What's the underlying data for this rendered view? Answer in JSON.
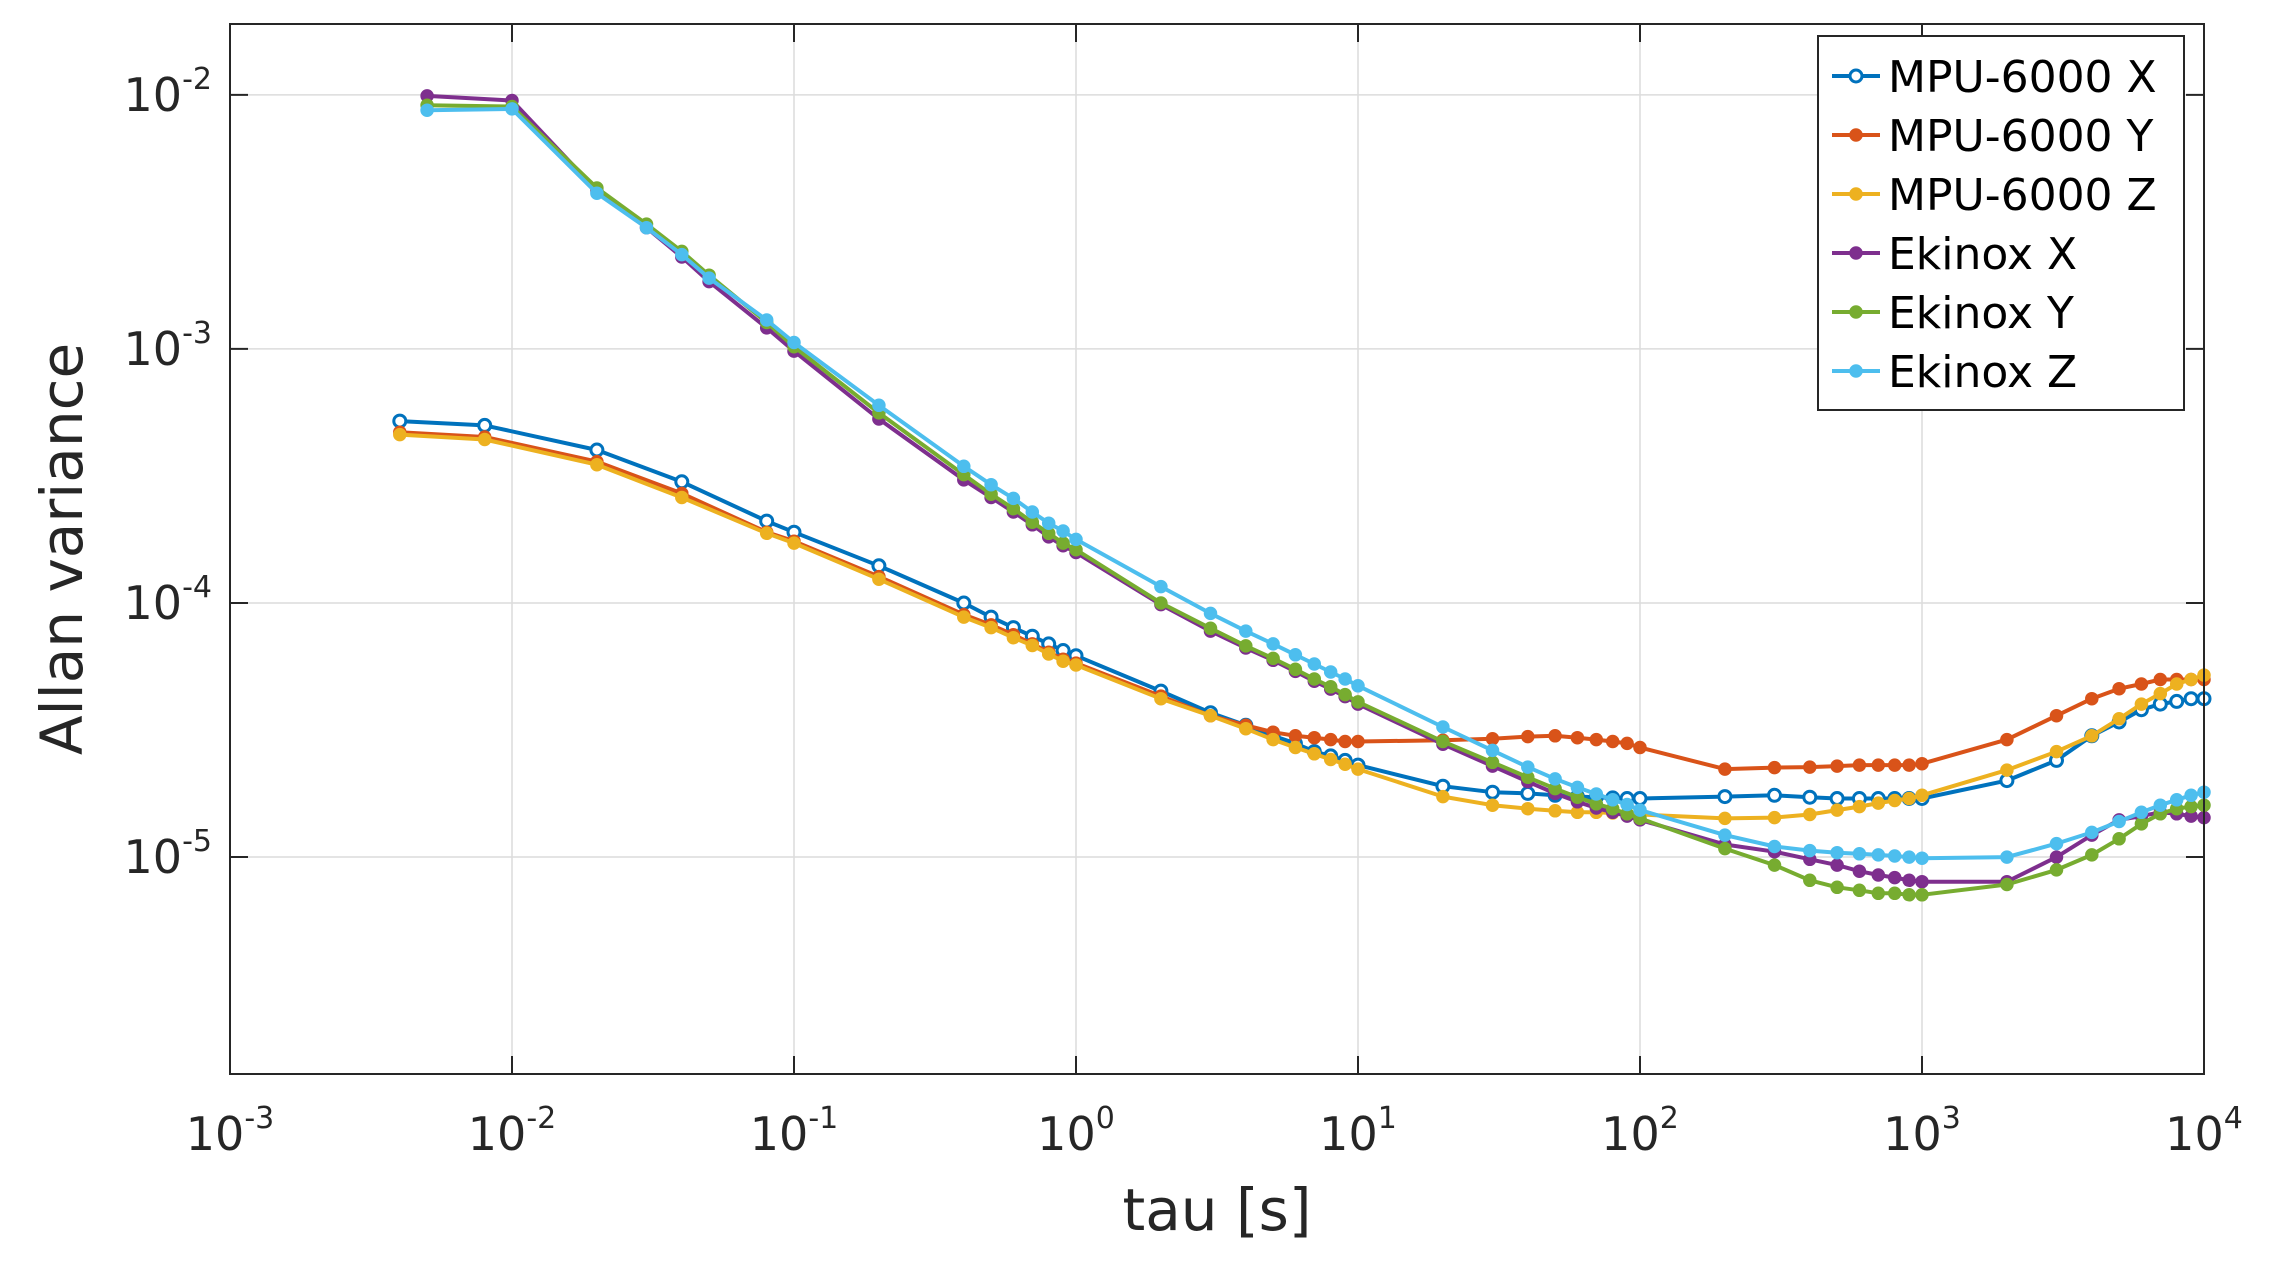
{
  "chart_data": {
    "type": "line",
    "title": "",
    "xlabel": "tau [s]",
    "ylabel": "Allan variance",
    "xscale": "log",
    "yscale": "log",
    "xlim": [
      0.001,
      10000
    ],
    "ylim": [
      1.4e-06,
      0.019
    ],
    "grid": true,
    "legend_position": "top-right",
    "x_ticks": [
      {
        "base": "10",
        "exp": "-3",
        "value": 0.001
      },
      {
        "base": "10",
        "exp": "-2",
        "value": 0.01
      },
      {
        "base": "10",
        "exp": "-1",
        "value": 0.1
      },
      {
        "base": "10",
        "exp": "0",
        "value": 1
      },
      {
        "base": "10",
        "exp": "1",
        "value": 10
      },
      {
        "base": "10",
        "exp": "2",
        "value": 100
      },
      {
        "base": "10",
        "exp": "3",
        "value": 1000
      },
      {
        "base": "10",
        "exp": "4",
        "value": 10000
      }
    ],
    "y_ticks": [
      {
        "base": "10",
        "exp": "-5",
        "value": 1e-05
      },
      {
        "base": "10",
        "exp": "-4",
        "value": 0.0001
      },
      {
        "base": "10",
        "exp": "-3",
        "value": 0.001
      },
      {
        "base": "10",
        "exp": "-2",
        "value": 0.01
      }
    ],
    "series": [
      {
        "name": "MPU-6000 X",
        "color": "#0072BD",
        "marker": "open-circle",
        "x": [
          0.004,
          0.008,
          0.02,
          0.04,
          0.08,
          0.1,
          0.2,
          0.4,
          0.5,
          0.6,
          0.7,
          0.8,
          0.9,
          1,
          2,
          3,
          4,
          5,
          6,
          7,
          8,
          9,
          10,
          20,
          30,
          40,
          50,
          60,
          70,
          80,
          90,
          100,
          200,
          300,
          400,
          500,
          600,
          700,
          800,
          900,
          1000,
          2000,
          3000,
          4000,
          5000,
          6000,
          7000,
          8000,
          9000,
          10000
        ],
        "values": [
          0.00052,
          0.0005,
          0.0004,
          0.0003,
          0.00021,
          0.00019,
          0.00014,
          0.0001,
          8.8e-05,
          8e-05,
          7.4e-05,
          6.9e-05,
          6.5e-05,
          6.2e-05,
          4.5e-05,
          3.7e-05,
          3.3e-05,
          3e-05,
          2.8e-05,
          2.6e-05,
          2.5e-05,
          2.4e-05,
          2.3e-05,
          1.9e-05,
          1.8e-05,
          1.78e-05,
          1.75e-05,
          1.73e-05,
          1.72e-05,
          1.71e-05,
          1.7e-05,
          1.7e-05,
          1.73e-05,
          1.75e-05,
          1.72e-05,
          1.7e-05,
          1.7e-05,
          1.7e-05,
          1.7e-05,
          1.7e-05,
          1.7e-05,
          2e-05,
          2.4e-05,
          3e-05,
          3.4e-05,
          3.8e-05,
          4e-05,
          4.1e-05,
          4.2e-05,
          4.2e-05
        ]
      },
      {
        "name": "MPU-6000 Y",
        "color": "#D95319",
        "marker": "filled-circle",
        "x": [
          0.004,
          0.008,
          0.02,
          0.04,
          0.08,
          0.1,
          0.2,
          0.4,
          0.5,
          0.6,
          0.7,
          0.8,
          0.9,
          1,
          2,
          3,
          4,
          5,
          6,
          7,
          8,
          9,
          10,
          20,
          30,
          40,
          50,
          60,
          70,
          80,
          90,
          100,
          200,
          300,
          400,
          500,
          600,
          700,
          800,
          900,
          1000,
          2000,
          3000,
          4000,
          5000,
          6000,
          7000,
          8000,
          9000,
          10000
        ],
        "values": [
          0.00047,
          0.00045,
          0.00036,
          0.00027,
          0.00019,
          0.000175,
          0.000127,
          9e-05,
          8.2e-05,
          7.5e-05,
          6.9e-05,
          6.4e-05,
          6e-05,
          5.8e-05,
          4.3e-05,
          3.6e-05,
          3.3e-05,
          3.1e-05,
          3e-05,
          2.95e-05,
          2.9e-05,
          2.85e-05,
          2.85e-05,
          2.88e-05,
          2.92e-05,
          2.98e-05,
          3e-05,
          2.95e-05,
          2.9e-05,
          2.85e-05,
          2.8e-05,
          2.7e-05,
          2.22e-05,
          2.25e-05,
          2.26e-05,
          2.28e-05,
          2.3e-05,
          2.3e-05,
          2.3e-05,
          2.3e-05,
          2.33e-05,
          2.9e-05,
          3.6e-05,
          4.2e-05,
          4.6e-05,
          4.8e-05,
          5e-05,
          5e-05,
          5e-05,
          5e-05
        ]
      },
      {
        "name": "MPU-6000 Z",
        "color": "#EDB120",
        "marker": "filled-circle",
        "x": [
          0.004,
          0.008,
          0.02,
          0.04,
          0.08,
          0.1,
          0.2,
          0.4,
          0.5,
          0.6,
          0.7,
          0.8,
          0.9,
          1,
          2,
          3,
          4,
          5,
          6,
          7,
          8,
          9,
          10,
          20,
          30,
          40,
          50,
          60,
          70,
          80,
          90,
          100,
          200,
          300,
          400,
          500,
          600,
          700,
          800,
          900,
          1000,
          2000,
          3000,
          4000,
          5000,
          6000,
          7000,
          8000,
          9000,
          10000
        ],
        "values": [
          0.00046,
          0.00044,
          0.00035,
          0.00026,
          0.000188,
          0.000172,
          0.000124,
          8.8e-05,
          8e-05,
          7.3e-05,
          6.8e-05,
          6.3e-05,
          5.9e-05,
          5.7e-05,
          4.2e-05,
          3.6e-05,
          3.2e-05,
          2.9e-05,
          2.7e-05,
          2.55e-05,
          2.42e-05,
          2.32e-05,
          2.22e-05,
          1.73e-05,
          1.6e-05,
          1.55e-05,
          1.52e-05,
          1.5e-05,
          1.5e-05,
          1.49e-05,
          1.48e-05,
          1.47e-05,
          1.42e-05,
          1.43e-05,
          1.47e-05,
          1.53e-05,
          1.58e-05,
          1.63e-05,
          1.67e-05,
          1.7e-05,
          1.75e-05,
          2.2e-05,
          2.6e-05,
          3e-05,
          3.5e-05,
          4e-05,
          4.4e-05,
          4.8e-05,
          5e-05,
          5.2e-05
        ]
      },
      {
        "name": "Ekinox X",
        "color": "#7E2F8E",
        "marker": "filled-circle",
        "x": [
          0.005,
          0.01,
          0.02,
          0.03,
          0.04,
          0.05,
          0.08,
          0.1,
          0.2,
          0.4,
          0.5,
          0.6,
          0.7,
          0.8,
          0.9,
          1,
          2,
          3,
          4,
          5,
          6,
          7,
          8,
          9,
          10,
          20,
          30,
          40,
          50,
          60,
          70,
          80,
          90,
          100,
          200,
          300,
          400,
          500,
          600,
          700,
          800,
          900,
          1000,
          2000,
          3000,
          4000,
          5000,
          6000,
          7000,
          8000,
          9000,
          10000
        ],
        "values": [
          0.0099,
          0.0095,
          0.0042,
          0.003,
          0.0023,
          0.00184,
          0.00121,
          0.00098,
          0.00053,
          0.000305,
          0.00026,
          0.000228,
          0.000203,
          0.000182,
          0.000168,
          0.000158,
          9.85e-05,
          7.75e-05,
          6.65e-05,
          5.95e-05,
          5.38e-05,
          4.92e-05,
          4.58e-05,
          4.28e-05,
          4e-05,
          2.78e-05,
          2.28e-05,
          1.98e-05,
          1.78e-05,
          1.65e-05,
          1.56e-05,
          1.5e-05,
          1.45e-05,
          1.4e-05,
          1.12e-05,
          1.05e-05,
          9.8e-06,
          9.3e-06,
          8.8e-06,
          8.5e-06,
          8.3e-06,
          8.1e-06,
          8e-06,
          8e-06,
          1e-05,
          1.22e-05,
          1.4e-05,
          1.45e-05,
          1.5e-05,
          1.48e-05,
          1.45e-05,
          1.43e-05
        ]
      },
      {
        "name": "Ekinox Y",
        "color": "#77AC30",
        "marker": "filled-circle",
        "x": [
          0.005,
          0.01,
          0.02,
          0.03,
          0.04,
          0.05,
          0.08,
          0.1,
          0.2,
          0.4,
          0.5,
          0.6,
          0.7,
          0.8,
          0.9,
          1,
          2,
          3,
          4,
          5,
          6,
          7,
          8,
          9,
          10,
          20,
          30,
          40,
          50,
          60,
          70,
          80,
          90,
          100,
          200,
          300,
          400,
          500,
          600,
          700,
          800,
          900,
          1000,
          2000,
          3000,
          4000,
          5000,
          6000,
          7000,
          8000,
          9000,
          10000
        ],
        "values": [
          0.0091,
          0.009,
          0.0043,
          0.0031,
          0.00242,
          0.00195,
          0.00127,
          0.00102,
          0.00056,
          0.00032,
          0.000268,
          0.000235,
          0.000208,
          0.000188,
          0.000172,
          0.000162,
          0.0001,
          7.95e-05,
          6.78e-05,
          6.05e-05,
          5.48e-05,
          5.02e-05,
          4.68e-05,
          4.36e-05,
          4.08e-05,
          2.85e-05,
          2.36e-05,
          2.06e-05,
          1.86e-05,
          1.72e-05,
          1.62e-05,
          1.55e-05,
          1.48e-05,
          1.42e-05,
          1.08e-05,
          9.3e-06,
          8.1e-06,
          7.6e-06,
          7.4e-06,
          7.2e-06,
          7.2e-06,
          7.1e-06,
          7.1e-06,
          7.8e-06,
          8.9e-06,
          1.02e-05,
          1.18e-05,
          1.35e-05,
          1.48e-05,
          1.55e-05,
          1.58e-05,
          1.6e-05
        ]
      },
      {
        "name": "Ekinox Z",
        "color": "#4DBEEE",
        "marker": "filled-circle",
        "x": [
          0.005,
          0.01,
          0.02,
          0.03,
          0.04,
          0.05,
          0.08,
          0.1,
          0.2,
          0.4,
          0.5,
          0.6,
          0.7,
          0.8,
          0.9,
          1,
          2,
          3,
          4,
          5,
          6,
          7,
          8,
          9,
          10,
          20,
          30,
          40,
          50,
          60,
          70,
          80,
          90,
          100,
          200,
          300,
          400,
          500,
          600,
          700,
          800,
          900,
          1000,
          2000,
          3000,
          4000,
          5000,
          6000,
          7000,
          8000,
          9000,
          10000
        ],
        "values": [
          0.0087,
          0.0088,
          0.0041,
          0.003,
          0.00235,
          0.0019,
          0.0013,
          0.00106,
          0.0006,
          0.000345,
          0.000292,
          0.000258,
          0.000228,
          0.000206,
          0.000192,
          0.000178,
          0.000116,
          9.1e-05,
          7.75e-05,
          6.9e-05,
          6.25e-05,
          5.75e-05,
          5.35e-05,
          5.02e-05,
          4.72e-05,
          3.25e-05,
          2.63e-05,
          2.26e-05,
          2.03e-05,
          1.88e-05,
          1.77e-05,
          1.68e-05,
          1.61e-05,
          1.53e-05,
          1.22e-05,
          1.1e-05,
          1.06e-05,
          1.04e-05,
          1.03e-05,
          1.02e-05,
          1.01e-05,
          1e-05,
          9.9e-06,
          1e-05,
          1.13e-05,
          1.25e-05,
          1.38e-05,
          1.5e-05,
          1.6e-05,
          1.68e-05,
          1.75e-05,
          1.8e-05
        ]
      }
    ]
  }
}
